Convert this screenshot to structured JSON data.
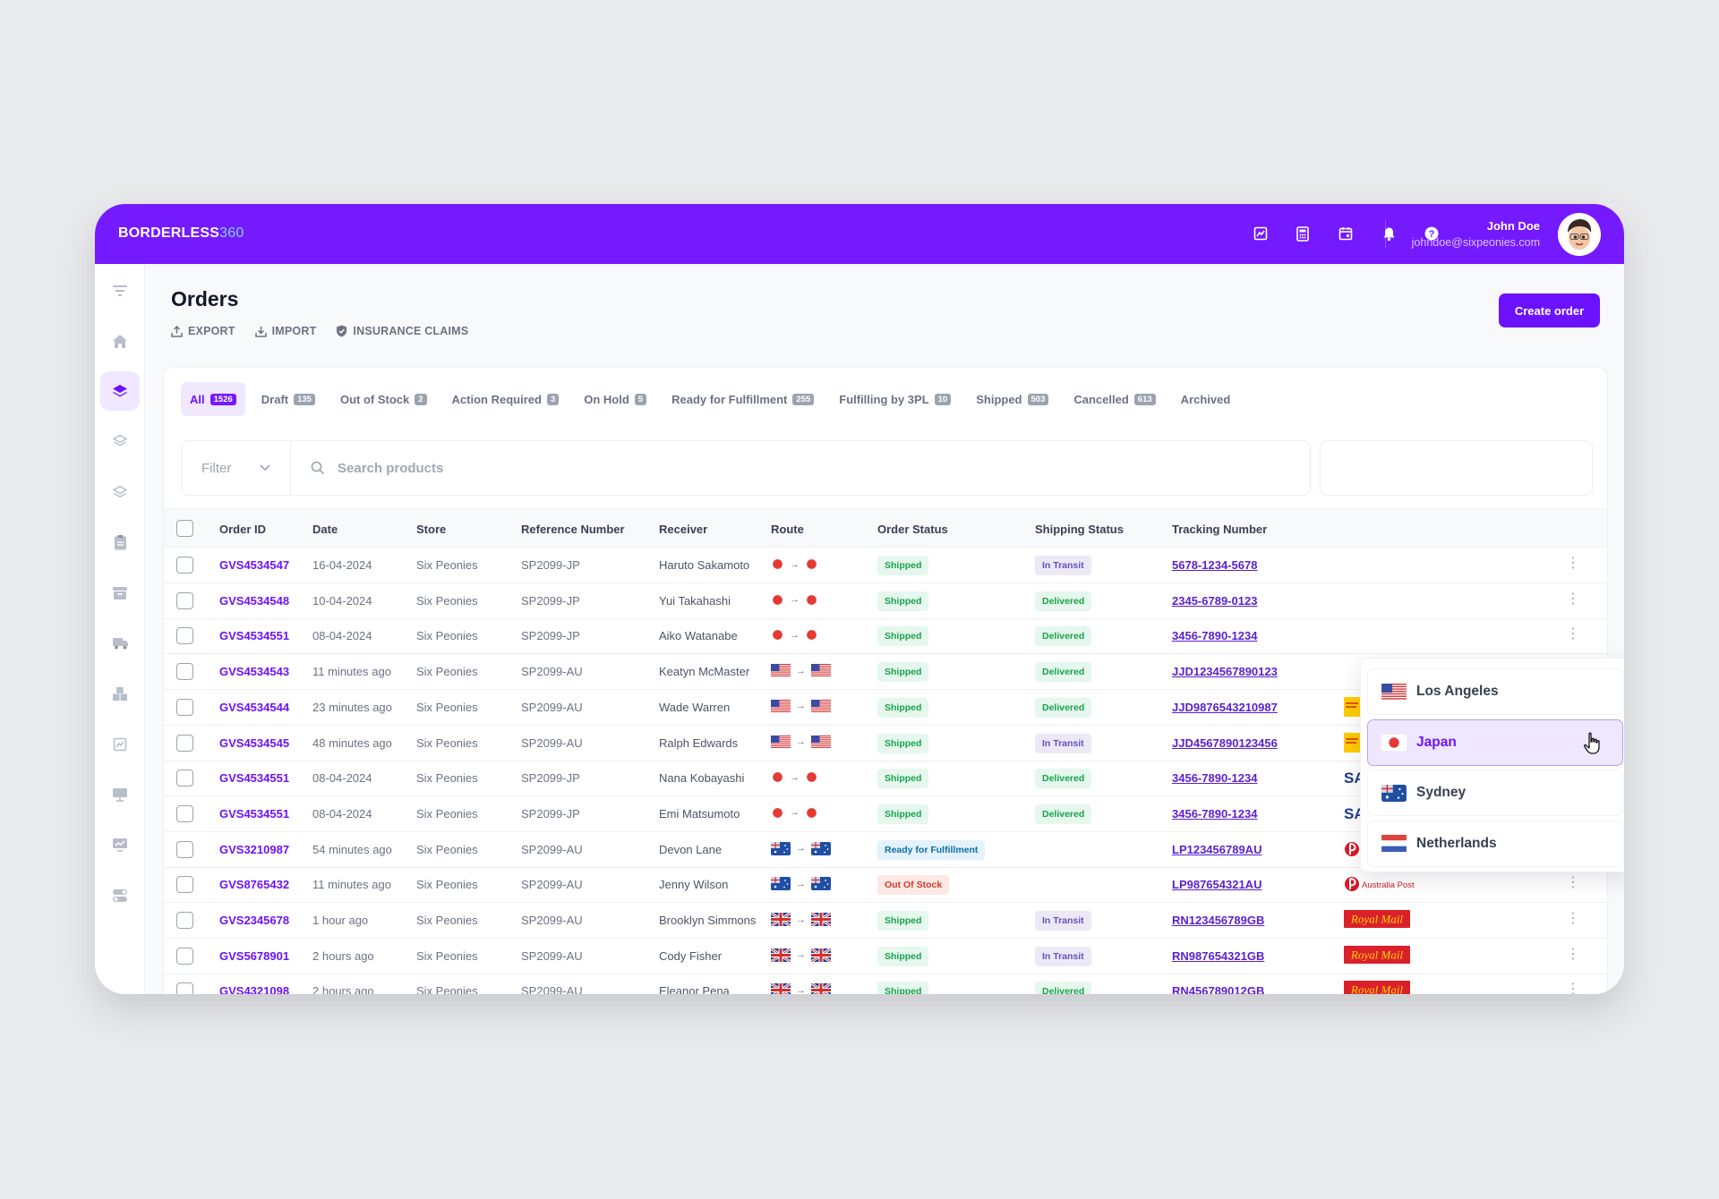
{
  "brand": {
    "name": "BORDERLESS",
    "suffix": "360"
  },
  "user": {
    "name": "John Doe",
    "email": "johndoe@sixpeonies.com"
  },
  "page": {
    "title": "Orders",
    "actions": {
      "export": "EXPORT",
      "import": "IMPORT",
      "insurance": "INSURANCE CLAIMS"
    },
    "create_label": "Create order"
  },
  "tabs": [
    {
      "label": "All",
      "count": "1526"
    },
    {
      "label": "Draft",
      "count": "135"
    },
    {
      "label": "Out of Stock",
      "count": "2"
    },
    {
      "label": "Action Required",
      "count": "3"
    },
    {
      "label": "On Hold",
      "count": "5"
    },
    {
      "label": "Ready for Fulfillment",
      "count": "255"
    },
    {
      "label": "Fulfilling by 3PL",
      "count": "10"
    },
    {
      "label": "Shipped",
      "count": "503"
    },
    {
      "label": "Cancelled",
      "count": "613"
    },
    {
      "label": "Archived",
      "count": ""
    }
  ],
  "filter": {
    "label": "Filter",
    "search_placeholder": "Search products"
  },
  "columns": [
    "Order ID",
    "Date",
    "Store",
    "Reference Number",
    "Receiver",
    "Route",
    "Order Status",
    "Shipping Status",
    "Tracking Number"
  ],
  "rows": [
    {
      "id": "GVS4534547",
      "date": "16-04-2024",
      "store": "Six Peonies",
      "ref": "SP2099-JP",
      "receiver": "Haruto Sakamoto",
      "route": "jp",
      "order_status": "Shipped",
      "shipping": "In Transit",
      "tracking": "5678-1234-5678",
      "carrier": ""
    },
    {
      "id": "GVS4534548",
      "date": "10-04-2024",
      "store": "Six Peonies",
      "ref": "SP2099-JP",
      "receiver": "Yui Takahashi",
      "route": "jp",
      "order_status": "Shipped",
      "shipping": "Delivered",
      "tracking": "2345-6789-0123",
      "carrier": ""
    },
    {
      "id": "GVS4534551",
      "date": "08-04-2024",
      "store": "Six Peonies",
      "ref": "SP2099-JP",
      "receiver": "Aiko Watanabe",
      "route": "jp",
      "order_status": "Shipped",
      "shipping": "Delivered",
      "tracking": "3456-7890-1234",
      "carrier": ""
    },
    {
      "id": "GVS4534543",
      "date": "11 minutes ago",
      "store": "Six Peonies",
      "ref": "SP2099-AU",
      "receiver": "Keatyn McMaster",
      "route": "us",
      "order_status": "Shipped",
      "shipping": "Delivered",
      "tracking": "JJD1234567890123",
      "carrier": ""
    },
    {
      "id": "GVS4534544",
      "date": "23 minutes ago",
      "store": "Six Peonies",
      "ref": "SP2099-AU",
      "receiver": "Wade Warren",
      "route": "us",
      "order_status": "Shipped",
      "shipping": "Delivered",
      "tracking": "JJD9876543210987",
      "carrier": "DHL"
    },
    {
      "id": "GVS4534545",
      "date": "48 minutes ago",
      "store": "Six Peonies",
      "ref": "SP2099-AU",
      "receiver": "Ralph Edwards",
      "route": "us",
      "order_status": "Shipped",
      "shipping": "In Transit",
      "tracking": "JJD4567890123456",
      "carrier": "DHL"
    },
    {
      "id": "GVS4534551",
      "date": "08-04-2024",
      "store": "Six Peonies",
      "ref": "SP2099-JP",
      "receiver": "Nana Kobayashi",
      "route": "jp",
      "order_status": "Shipped",
      "shipping": "Delivered",
      "tracking": "3456-7890-1234",
      "carrier": "SAGAWA"
    },
    {
      "id": "GVS4534551",
      "date": "08-04-2024",
      "store": "Six Peonies",
      "ref": "SP2099-JP",
      "receiver": "Emi Matsumoto",
      "route": "jp",
      "order_status": "Shipped",
      "shipping": "Delivered",
      "tracking": "3456-7890-1234",
      "carrier": "SAGAWA"
    },
    {
      "id": "GVS3210987",
      "date": "54 minutes ago",
      "store": "Six Peonies",
      "ref": "SP2099-AU",
      "receiver": "Devon Lane",
      "route": "au",
      "order_status": "Ready for Fulfillment",
      "shipping": "",
      "tracking": "LP123456789AU",
      "carrier": "Australia Post"
    },
    {
      "id": "GVS8765432",
      "date": "11 minutes ago",
      "store": "Six Peonies",
      "ref": "SP2099-AU",
      "receiver": "Jenny Wilson",
      "route": "au",
      "order_status": "Out Of Stock",
      "shipping": "",
      "tracking": "LP987654321AU",
      "carrier": "Australia Post"
    },
    {
      "id": "GVS2345678",
      "date": "1 hour ago",
      "store": "Six Peonies",
      "ref": "SP2099-AU",
      "receiver": "Brooklyn Simmons",
      "route": "uk",
      "order_status": "Shipped",
      "shipping": "In Transit",
      "tracking": "RN123456789GB",
      "carrier": "Royal Mail"
    },
    {
      "id": "GVS5678901",
      "date": "2 hours ago",
      "store": "Six Peonies",
      "ref": "SP2099-AU",
      "receiver": "Cody Fisher",
      "route": "uk",
      "order_status": "Shipped",
      "shipping": "In Transit",
      "tracking": "RN987654321GB",
      "carrier": "Royal Mail"
    },
    {
      "id": "GVS4321098",
      "date": "2 hours ago",
      "store": "Six Peonies",
      "ref": "SP2099-AU",
      "receiver": "Eleanor Pena",
      "route": "uk",
      "order_status": "Shipped",
      "shipping": "Delivered",
      "tracking": "RN456789012GB",
      "carrier": "Royal Mail"
    }
  ],
  "locations": [
    {
      "label": "Los Angeles",
      "flag": "us"
    },
    {
      "label": "Japan",
      "flag": "jp"
    },
    {
      "label": "Sydney",
      "flag": "au"
    },
    {
      "label": "Netherlands",
      "flag": "nl"
    }
  ],
  "selected_location": "Japan",
  "colors": {
    "brand": "#7519ff",
    "accent": "#6c12ff"
  }
}
